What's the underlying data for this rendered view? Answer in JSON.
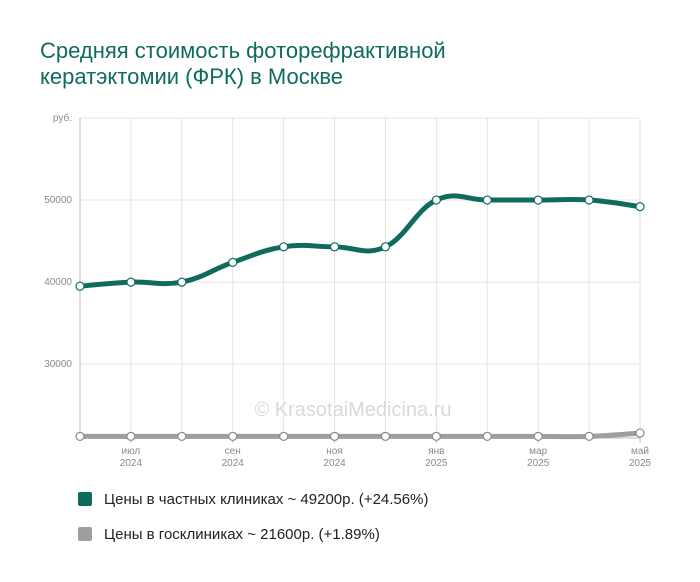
{
  "chart_data": {
    "type": "line",
    "title_lines": [
      "Средняя стоимость фоторефрактивной",
      "кератэктомии (ФРК) в Москве"
    ],
    "y_unit": "руб.",
    "y_ticks": [
      "30000",
      "40000",
      "50000"
    ],
    "ylim": [
      21000,
      60000
    ],
    "x_labels": [
      {
        "month": "июл",
        "year": "2024"
      },
      {
        "month": "сен",
        "year": "2024"
      },
      {
        "month": "ноя",
        "year": "2024"
      },
      {
        "month": "янв",
        "year": "2025"
      },
      {
        "month": "мар",
        "year": "2025"
      },
      {
        "month": "май",
        "year": "2025"
      }
    ],
    "x_labels_index": [
      1,
      3,
      5,
      7,
      9,
      11
    ],
    "watermark": "© KrasotaiMedicina.ru",
    "grid": true,
    "series": [
      {
        "name": "Цены в частных клиниках",
        "legend_label": "Цены в частных клиниках ~ 49200р. (+24.56%)",
        "color": "#0f6b5e",
        "values": [
          39500,
          40000,
          40000,
          42400,
          44300,
          44300,
          44300,
          50000,
          50000,
          50000,
          50000,
          49200
        ]
      },
      {
        "name": "Цены в госклиниках",
        "legend_label": "Цены в госклиниках ~ 21600р. (+1.89%)",
        "color": "#9e9e9e",
        "values": [
          21200,
          21200,
          21200,
          21200,
          21200,
          21200,
          21200,
          21200,
          21200,
          21200,
          21200,
          21600
        ]
      }
    ]
  }
}
